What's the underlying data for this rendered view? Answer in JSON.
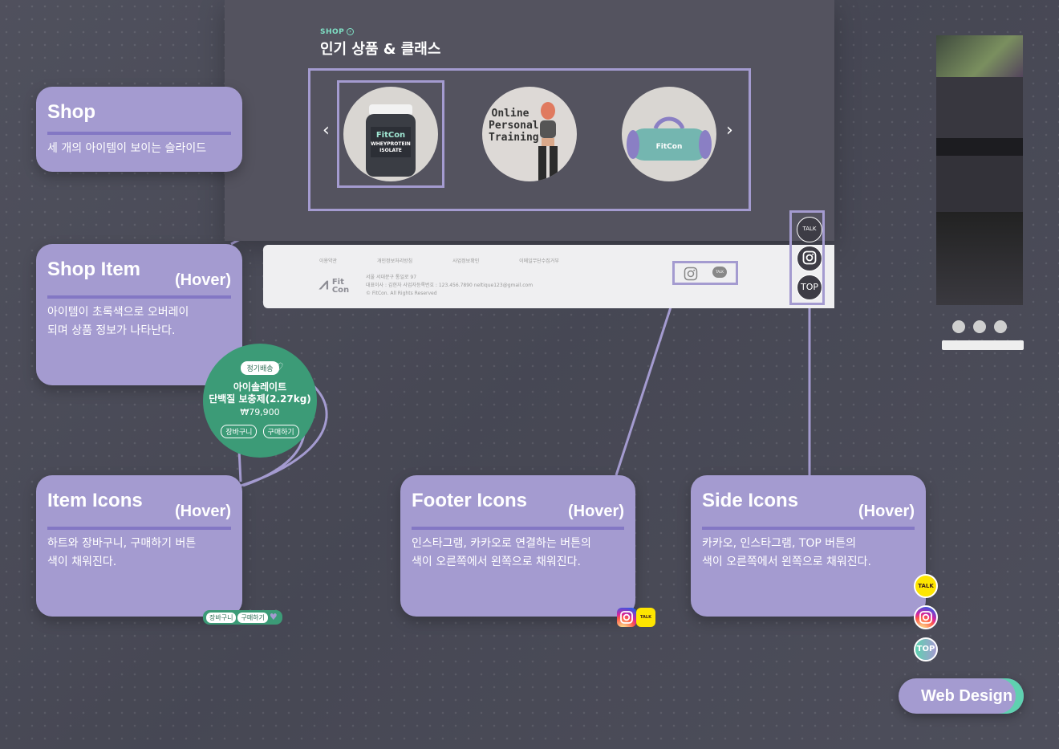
{
  "mockup": {
    "section_label": "SHOP",
    "section_title": "인기 상품 & 클래스",
    "products": [
      {
        "name": "product-protein",
        "label_line1": "FitCon",
        "label_line2": "WHEYPROTEIN",
        "label_line3": "ISOLATE"
      },
      {
        "name": "product-pt",
        "label_line1": "Online",
        "label_line2": "Personal",
        "label_line3": "Training"
      },
      {
        "name": "product-bag",
        "label": "FitCon"
      }
    ],
    "prev_arrow": "‹",
    "next_arrow": "›",
    "footer": {
      "links": [
        "이용약관",
        "개인정보처리방침",
        "사업정보확인",
        "이메일무단수집거부"
      ],
      "logo_line1": "Fit",
      "logo_line2": "Con",
      "info": [
        "서울 서대문구 통일로 97",
        "대표이사 : 김현자 사업자등록번호 : 123.456.7890 neltique123@gmail.com",
        "© FitCon. All Rights Reserved"
      ],
      "talk_icon": "TALK"
    },
    "side": {
      "talk": "TALK",
      "top": "TOP"
    }
  },
  "cards": {
    "shop": {
      "title": "Shop",
      "desc": "세 개의 아이템이 보이는 슬라이드"
    },
    "shop_item": {
      "title": "Shop Item",
      "hover": "(Hover)",
      "desc_l1": "아이템이 초록색으로 오버레이",
      "desc_l2": "되며 상품 정보가 나타난다."
    },
    "item_icons": {
      "title": "Item Icons",
      "hover": "(Hover)",
      "desc_l1": "하트와 장바구니,  구매하기 버튼",
      "desc_l2": "색이 채워진다."
    },
    "footer_icons": {
      "title": "Footer Icons",
      "hover": "(Hover)",
      "desc_l1": "인스타그램, 카카오로 연결하는 버튼의",
      "desc_l2": "색이 오른쪽에서 왼쪽으로 채워진다."
    },
    "side_icons": {
      "title": "Side Icons",
      "hover": "(Hover)",
      "desc_l1": "카카오, 인스타그램, TOP 버튼의",
      "desc_l2": "색이 오른쪽에서 왼쪽으로 채워진다."
    }
  },
  "hover_item": {
    "badge": "정기배송",
    "name_l1": "아이솔레이트",
    "name_l2": "단백질 보충제(2.27kg)",
    "price": "₩79,900",
    "cart": "장바구니",
    "buy": "구매하기"
  },
  "mini": {
    "cart": "장바구니",
    "buy": "구매하기",
    "talk": "TALK",
    "top": "TOP"
  },
  "badge": {
    "label": "Web Design"
  },
  "colors": {
    "accent": "#a49bd0",
    "hover_green": "#3c9b77",
    "mint": "#5fd1b0",
    "background": "#4a4b58"
  }
}
